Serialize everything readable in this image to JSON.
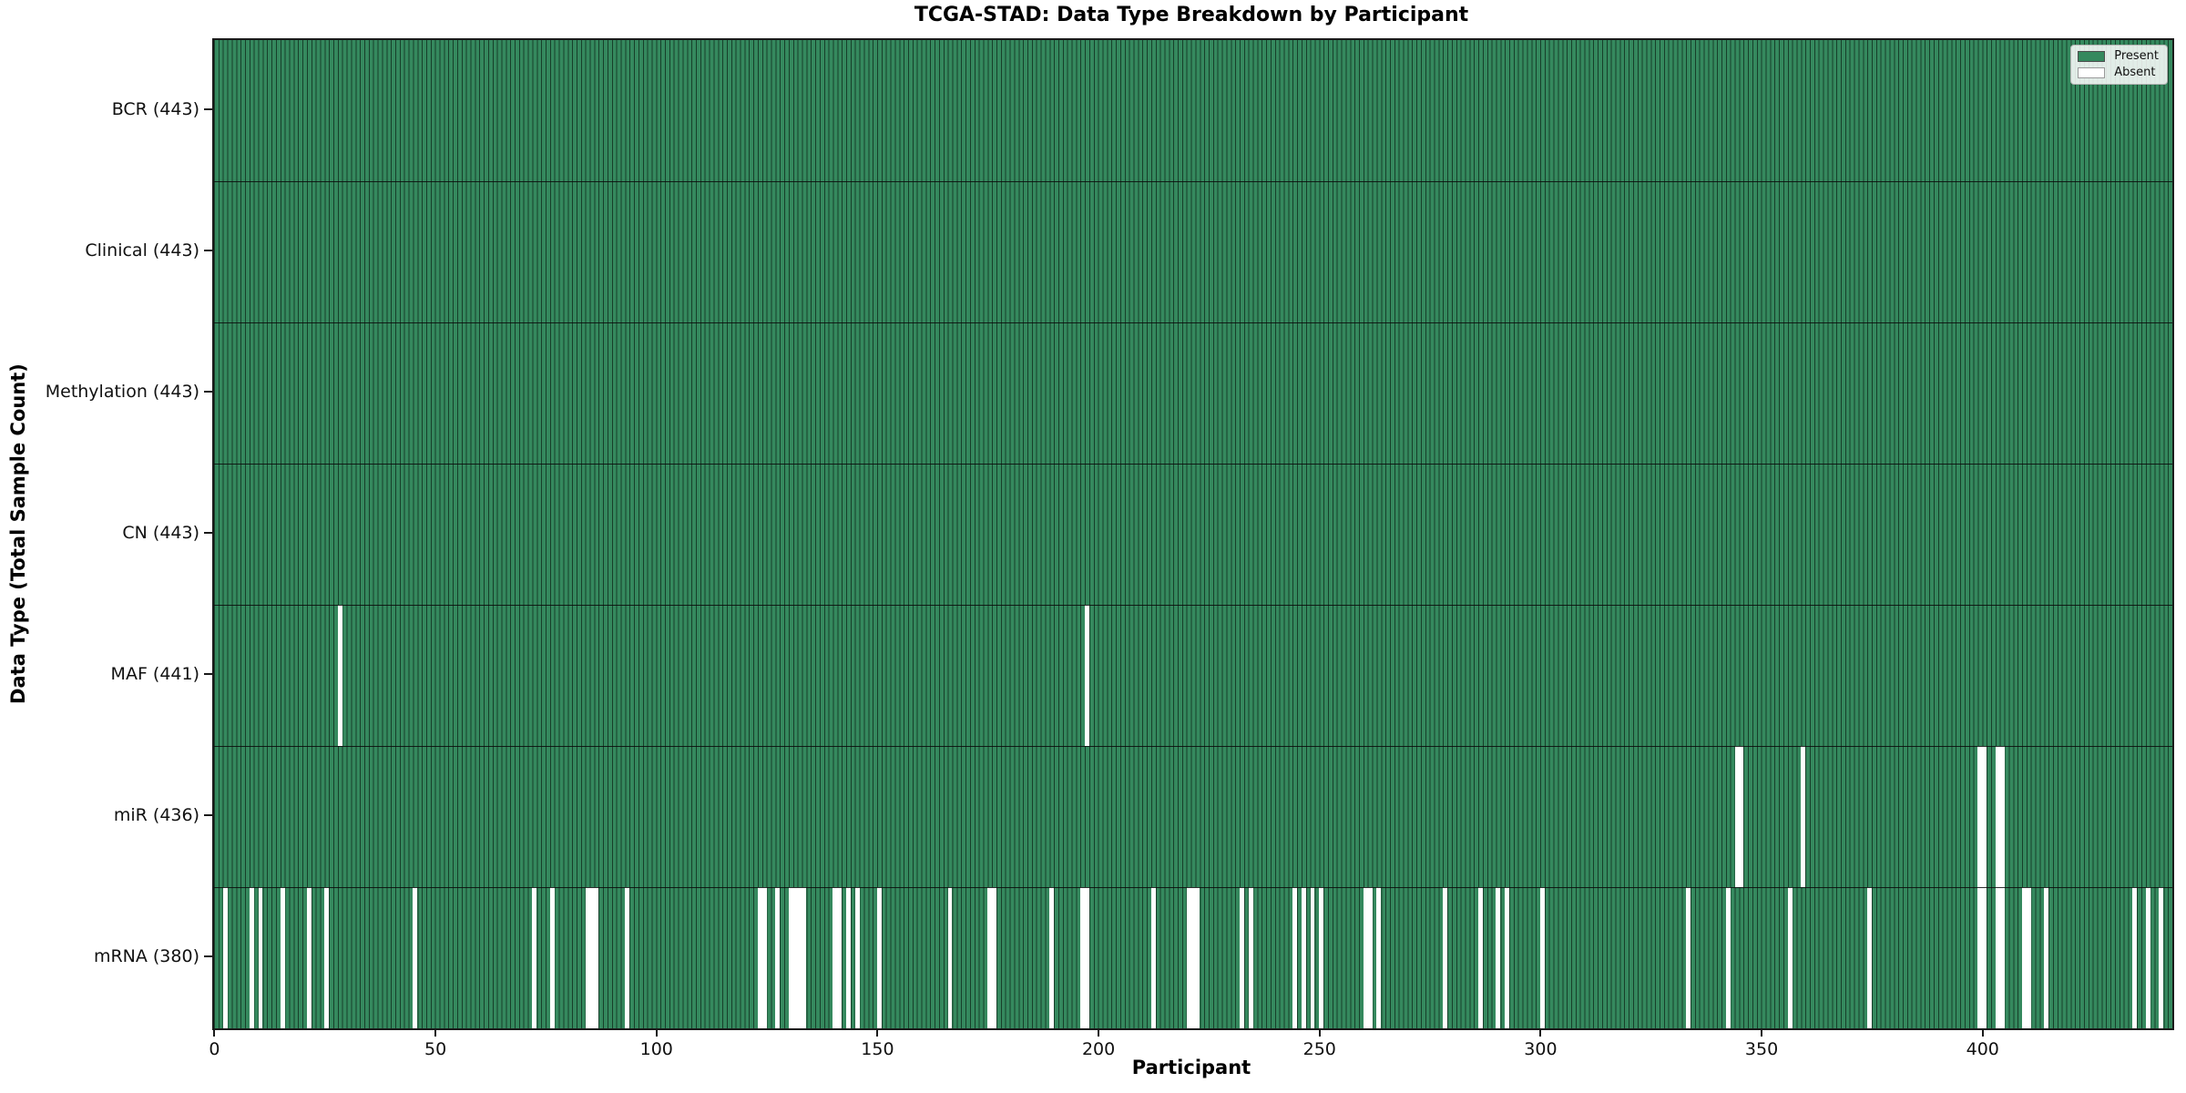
{
  "title": "TCGA-STAD: Data Type Breakdown by Participant",
  "x_axis": {
    "label": "Participant",
    "ticks": [
      0,
      50,
      100,
      150,
      200,
      250,
      300,
      350,
      400
    ]
  },
  "y_axis": {
    "label": "Data Type (Total Sample Count)"
  },
  "legend": {
    "present_label": "Present",
    "absent_label": "Absent",
    "position": "upper right"
  },
  "colors": {
    "present": "#35895e",
    "bar_edge": "#173f2a",
    "absent": "#ffffff"
  },
  "chart_data": {
    "type": "heatmap",
    "title": "TCGA-STAD: Data Type Breakdown by Participant",
    "xlabel": "Participant",
    "ylabel": "Data Type (Total Sample Count)",
    "n_participants": 443,
    "x_range": [
      0,
      442
    ],
    "grid": false,
    "legend_position": "upper right",
    "legend_entries": [
      "Present",
      "Absent"
    ],
    "rows": [
      {
        "data_type": "BCR",
        "label": "BCR (443)",
        "present_count": 443,
        "absent_participants": []
      },
      {
        "data_type": "Clinical",
        "label": "Clinical (443)",
        "present_count": 443,
        "absent_participants": []
      },
      {
        "data_type": "Methylation",
        "label": "Methylation (443)",
        "present_count": 443,
        "absent_participants": []
      },
      {
        "data_type": "CN",
        "label": "CN (443)",
        "present_count": 443,
        "absent_participants": []
      },
      {
        "data_type": "MAF",
        "label": "MAF (441)",
        "present_count": 441,
        "absent_participants": [
          28,
          197
        ]
      },
      {
        "data_type": "miR",
        "label": "miR (436)",
        "present_count": 436,
        "absent_participants": [
          344,
          345,
          359,
          399,
          400,
          403,
          404
        ]
      },
      {
        "data_type": "mRNA",
        "label": "mRNA (380)",
        "present_count": 380,
        "absent_participants": [
          2,
          8,
          10,
          15,
          21,
          25,
          45,
          72,
          76,
          84,
          85,
          86,
          93,
          123,
          124,
          127,
          130,
          131,
          132,
          133,
          140,
          141,
          143,
          145,
          150,
          166,
          175,
          176,
          189,
          196,
          197,
          212,
          220,
          221,
          222,
          232,
          234,
          244,
          246,
          248,
          250,
          260,
          261,
          263,
          278,
          286,
          290,
          292,
          300,
          333,
          342,
          356,
          374,
          399,
          400,
          403,
          404,
          409,
          410,
          414,
          434,
          437,
          440
        ]
      }
    ]
  }
}
